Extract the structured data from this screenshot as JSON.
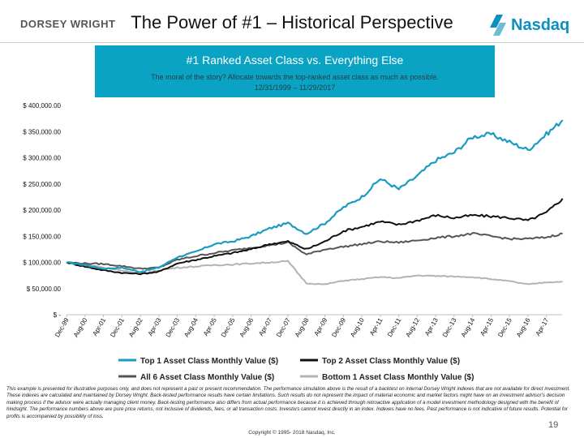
{
  "header": {
    "left_logo": "DORSEY WRIGHT",
    "title": "The Power of #1 – Historical Perspective",
    "right_logo": "Nasdaq"
  },
  "banner": {
    "title": "#1 Ranked Asset Class vs. Everything Else",
    "subtitle": "The moral of the story?  Allocate towards the top-ranked asset class as much as possible.",
    "dates": "12/31/1999 – 11/29/2017",
    "bg_color": "#0aa3c4"
  },
  "chart_data": {
    "type": "line",
    "title": "",
    "xlabel": "",
    "ylabel": "",
    "ylim": [
      0,
      400000
    ],
    "y_ticks": [
      "$ -",
      "$ 50,000.00",
      "$ 100,000.00",
      "$ 150,000.00",
      "$ 200,000.00",
      "$ 250,000.00",
      "$ 300,000.00",
      "$ 350,000.00",
      "$ 400,000.00"
    ],
    "y_tick_values": [
      0,
      50000,
      100000,
      150000,
      200000,
      250000,
      300000,
      350000,
      400000
    ],
    "x_ticks": [
      "Dec-99",
      "Aug-00",
      "Apr-01",
      "Dec-01",
      "Aug-02",
      "Apr-03",
      "Dec-03",
      "Aug-04",
      "Apr-05",
      "Dec-05",
      "Aug-06",
      "Apr-07",
      "Dec-07",
      "Aug-08",
      "Apr-09",
      "Dec-09",
      "Aug-10",
      "Apr-11",
      "Dec-11",
      "Aug-12",
      "Apr-13",
      "Dec-13",
      "Aug-14",
      "Apr-15",
      "Dec-15",
      "Aug-16",
      "Apr-17"
    ],
    "grid": false,
    "legend_position": "bottom",
    "series": [
      {
        "name": "Top 1 Asset Class Monthly Value ($)",
        "color": "#1a9bc0",
        "x": [
          "Dec-99",
          "Aug-00",
          "Apr-01",
          "Dec-01",
          "Aug-02",
          "Apr-03",
          "Dec-03",
          "Aug-04",
          "Apr-05",
          "Dec-05",
          "Aug-06",
          "Apr-07",
          "Dec-07",
          "Aug-08",
          "Apr-09",
          "Dec-09",
          "Aug-10",
          "Apr-11",
          "Dec-11",
          "Aug-12",
          "Apr-13",
          "Dec-13",
          "Aug-14",
          "Apr-15",
          "Dec-15",
          "Aug-16",
          "Apr-17",
          "Nov-17"
        ],
        "values": [
          100000,
          95000,
          88000,
          90000,
          82000,
          90000,
          110000,
          120000,
          135000,
          140000,
          150000,
          165000,
          175000,
          155000,
          175000,
          205000,
          225000,
          260000,
          240000,
          265000,
          295000,
          310000,
          340000,
          345000,
          330000,
          315000,
          345000,
          372000
        ]
      },
      {
        "name": "Top 2 Asset Class Monthly Value ($)",
        "color": "#111111",
        "x": [
          "Dec-99",
          "Aug-00",
          "Apr-01",
          "Dec-01",
          "Aug-02",
          "Apr-03",
          "Dec-03",
          "Aug-04",
          "Apr-05",
          "Dec-05",
          "Aug-06",
          "Apr-07",
          "Dec-07",
          "Aug-08",
          "Apr-09",
          "Dec-09",
          "Aug-10",
          "Apr-11",
          "Dec-11",
          "Aug-12",
          "Apr-13",
          "Dec-13",
          "Aug-14",
          "Apr-15",
          "Dec-15",
          "Aug-16",
          "Apr-17",
          "Nov-17"
        ],
        "values": [
          100000,
          92000,
          85000,
          80000,
          78000,
          82000,
          98000,
          105000,
          112000,
          118000,
          125000,
          135000,
          140000,
          125000,
          140000,
          160000,
          168000,
          178000,
          172000,
          180000,
          190000,
          185000,
          190000,
          188000,
          185000,
          180000,
          195000,
          222000
        ]
      },
      {
        "name": "All 6 Asset Class Monthly Value ($)",
        "color": "#555555",
        "x": [
          "Dec-99",
          "Aug-00",
          "Apr-01",
          "Dec-01",
          "Aug-02",
          "Apr-03",
          "Dec-03",
          "Aug-04",
          "Apr-05",
          "Dec-05",
          "Aug-06",
          "Apr-07",
          "Dec-07",
          "Aug-08",
          "Apr-09",
          "Dec-09",
          "Aug-10",
          "Apr-11",
          "Dec-11",
          "Aug-12",
          "Apr-13",
          "Dec-13",
          "Aug-14",
          "Apr-15",
          "Dec-15",
          "Aug-16",
          "Apr-17",
          "Nov-17"
        ],
        "values": [
          100000,
          98000,
          97000,
          93000,
          88000,
          90000,
          105000,
          112000,
          118000,
          123000,
          128000,
          133000,
          138000,
          115000,
          125000,
          130000,
          135000,
          140000,
          138000,
          142000,
          147000,
          150000,
          155000,
          150000,
          145000,
          145000,
          148000,
          155000
        ]
      },
      {
        "name": "Bottom 1 Asset Class Monthly Value ($)",
        "color": "#b3b3b3",
        "x": [
          "Dec-99",
          "Aug-00",
          "Apr-01",
          "Dec-01",
          "Aug-02",
          "Apr-03",
          "Dec-03",
          "Aug-04",
          "Apr-05",
          "Dec-05",
          "Aug-06",
          "Apr-07",
          "Dec-07",
          "Aug-08",
          "Apr-09",
          "Dec-09",
          "Aug-10",
          "Apr-11",
          "Dec-11",
          "Aug-12",
          "Apr-13",
          "Dec-13",
          "Aug-14",
          "Apr-15",
          "Dec-15",
          "Aug-16",
          "Apr-17",
          "Nov-17"
        ],
        "values": [
          100000,
          96000,
          90000,
          85000,
          78000,
          85000,
          90000,
          92000,
          95000,
          96000,
          98000,
          100000,
          102000,
          60000,
          58000,
          65000,
          68000,
          72000,
          70000,
          75000,
          74000,
          73000,
          72000,
          68000,
          64000,
          58000,
          62000,
          63000
        ]
      }
    ]
  },
  "footer": {
    "disclaimer": "This example is presented for illustrative purposes only, and does not represent a past or present recommendation. The performance simulation above is the result of a backtest on internal Dorsey Wright indexes that are not available for direct investment. These indexes are calculated and maintained by Dorsey Wright. Back-tested performance results have certain limitations. Such results do not represent the impact of material economic and market factors might have on an investment advisor's decision making process if the advisor were actually managing client money. Back-testing performance also differs from actual performance because it is achieved through retroactive application of a model investment methodology designed with the benefit of hindsight. The performance numbers above are pure price returns, not inclusive of dividends, fees, or all transaction costs. Investors cannot invest directly in an index. Indexes have no fees. Past performance is not indicative of future results. Potential for profits is accompanied by possibility of loss.",
    "copyright": "Copyright © 1995- 2018 Nasdaq, Inc.",
    "page_number": "19"
  }
}
